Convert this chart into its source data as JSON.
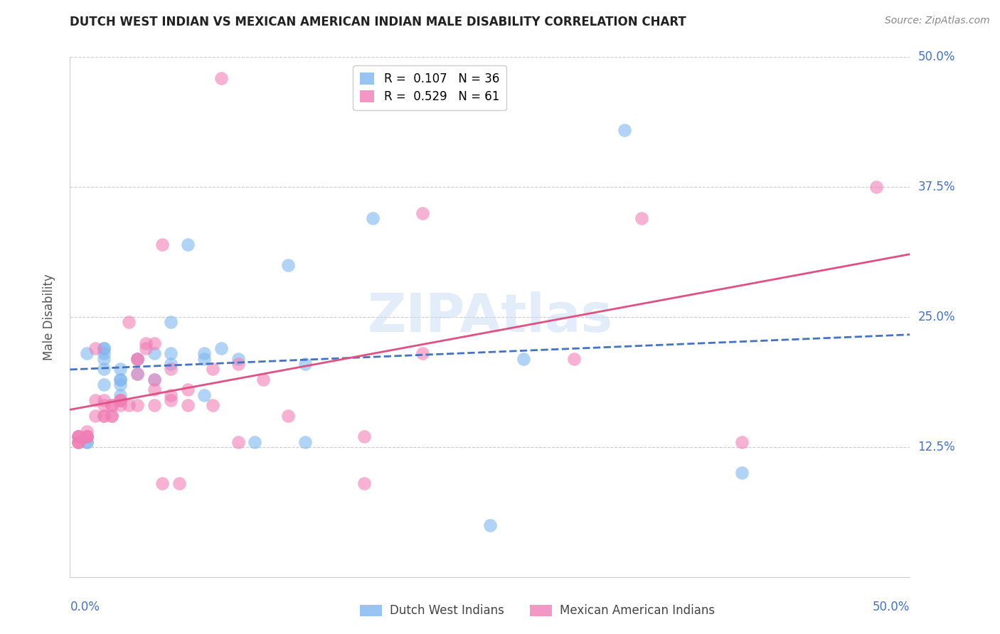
{
  "title": "DUTCH WEST INDIAN VS MEXICAN AMERICAN INDIAN MALE DISABILITY CORRELATION CHART",
  "source": "Source: ZipAtlas.com",
  "ylabel": "Male Disability",
  "ytick_labels": [
    "50.0%",
    "37.5%",
    "25.0%",
    "12.5%"
  ],
  "ytick_values": [
    0.5,
    0.375,
    0.25,
    0.125
  ],
  "xmin": 0.0,
  "xmax": 0.5,
  "ymin": 0.0,
  "ymax": 0.5,
  "legend_series1_label": "R =  0.107   N = 36",
  "legend_series2_label": "R =  0.529   N = 61",
  "series1_color": "#7EB6F0",
  "series2_color": "#F07EB6",
  "trendline1_color": "#4472C4",
  "trendline2_color": "#E05080",
  "watermark": "ZIPAtlas",
  "bottom_label1": "Dutch West Indians",
  "bottom_label2": "Mexican American Indians",
  "dutch_x": [
    0.01,
    0.01,
    0.01,
    0.02,
    0.02,
    0.02,
    0.02,
    0.02,
    0.02,
    0.03,
    0.03,
    0.03,
    0.03,
    0.03,
    0.04,
    0.04,
    0.05,
    0.05,
    0.06,
    0.06,
    0.06,
    0.07,
    0.08,
    0.08,
    0.08,
    0.09,
    0.1,
    0.11,
    0.13,
    0.14,
    0.14,
    0.18,
    0.25,
    0.27,
    0.33,
    0.4
  ],
  "dutch_y": [
    0.215,
    0.13,
    0.13,
    0.22,
    0.2,
    0.22,
    0.215,
    0.21,
    0.185,
    0.19,
    0.2,
    0.185,
    0.175,
    0.19,
    0.21,
    0.195,
    0.19,
    0.215,
    0.205,
    0.245,
    0.215,
    0.32,
    0.175,
    0.215,
    0.21,
    0.22,
    0.21,
    0.13,
    0.3,
    0.205,
    0.13,
    0.345,
    0.05,
    0.21,
    0.43,
    0.1
  ],
  "mexican_x": [
    0.005,
    0.005,
    0.005,
    0.005,
    0.005,
    0.005,
    0.01,
    0.01,
    0.01,
    0.01,
    0.01,
    0.015,
    0.015,
    0.015,
    0.02,
    0.02,
    0.02,
    0.02,
    0.025,
    0.025,
    0.025,
    0.025,
    0.03,
    0.03,
    0.03,
    0.03,
    0.035,
    0.035,
    0.04,
    0.04,
    0.04,
    0.04,
    0.045,
    0.045,
    0.05,
    0.05,
    0.05,
    0.05,
    0.055,
    0.055,
    0.06,
    0.06,
    0.06,
    0.065,
    0.07,
    0.07,
    0.085,
    0.085,
    0.09,
    0.1,
    0.1,
    0.115,
    0.13,
    0.175,
    0.175,
    0.21,
    0.21,
    0.3,
    0.34,
    0.4,
    0.48
  ],
  "mexican_y": [
    0.13,
    0.135,
    0.13,
    0.13,
    0.135,
    0.135,
    0.135,
    0.135,
    0.14,
    0.135,
    0.135,
    0.17,
    0.155,
    0.22,
    0.155,
    0.17,
    0.165,
    0.155,
    0.155,
    0.155,
    0.165,
    0.165,
    0.17,
    0.165,
    0.17,
    0.17,
    0.165,
    0.245,
    0.165,
    0.21,
    0.195,
    0.21,
    0.225,
    0.22,
    0.19,
    0.18,
    0.225,
    0.165,
    0.32,
    0.09,
    0.175,
    0.2,
    0.17,
    0.09,
    0.165,
    0.18,
    0.2,
    0.165,
    0.48,
    0.205,
    0.13,
    0.19,
    0.155,
    0.135,
    0.09,
    0.215,
    0.35,
    0.21,
    0.345,
    0.13,
    0.375
  ]
}
